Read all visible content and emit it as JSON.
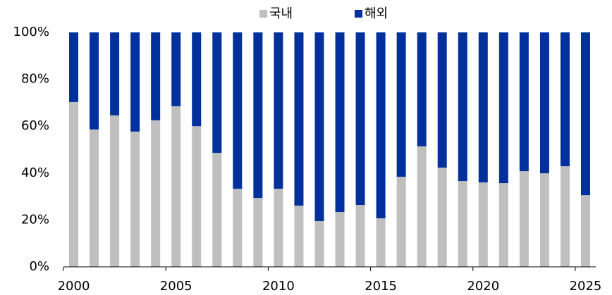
{
  "chart_data": {
    "type": "stacked_bar",
    "categories": [
      "2000",
      null,
      null,
      null,
      null,
      "2005",
      null,
      null,
      null,
      null,
      "2010",
      null,
      null,
      null,
      null,
      "2015",
      null,
      null,
      null,
      null,
      "2020",
      null,
      null,
      null,
      null,
      "2025"
    ],
    "series": [
      {
        "name": "국내",
        "color": "#bfbfbf",
        "values": [
          70.3,
          58.6,
          64.6,
          57.7,
          62.5,
          68.5,
          60,
          48.6,
          33.3,
          29.4,
          33.3,
          26.1,
          19.5,
          23.4,
          26.4,
          20.7,
          38.4,
          51.4,
          42.3,
          36.6,
          36,
          35.7,
          40.8,
          39.9,
          42.9,
          30.6
        ]
      },
      {
        "name": "해외",
        "color": "#00309c",
        "values": [
          29.7,
          41.4,
          35.4,
          42.3,
          37.5,
          31.5,
          40,
          51.4,
          66.7,
          70.6,
          66.7,
          73.9,
          80.5,
          76.6,
          73.6,
          79.3,
          61.6,
          48.6,
          57.7,
          63.4,
          64,
          64.3,
          59.2,
          60.1,
          57.1,
          69.4
        ]
      }
    ],
    "ylim": [
      0,
      100
    ],
    "yticks": [
      {
        "value": 0,
        "label": "0%"
      },
      {
        "value": 20,
        "label": "20%"
      },
      {
        "value": 40,
        "label": "40%"
      },
      {
        "value": 60,
        "label": "60%"
      },
      {
        "value": 80,
        "label": "80%"
      },
      {
        "value": 100,
        "label": "100%"
      }
    ],
    "legend": "top"
  }
}
